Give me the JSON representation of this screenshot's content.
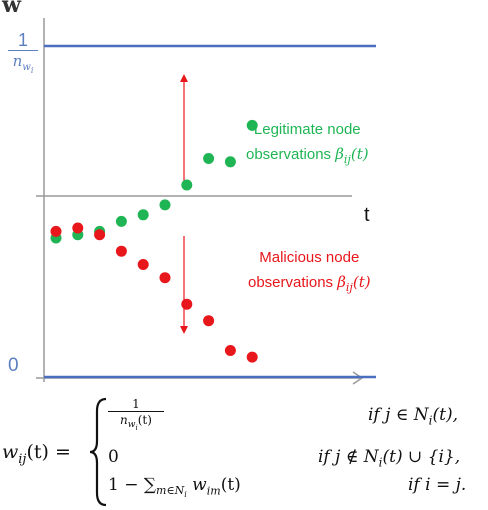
{
  "labels": {
    "w_axis": "w",
    "t_axis": "t",
    "one_over_n_num": "1",
    "one_over_n_den": "n",
    "one_over_n_sub": "w",
    "one_over_n_subsub": "i",
    "zero": "0",
    "legit_line1": "Legitimate node",
    "legit_line2": "observations",
    "legit_beta": "β",
    "legit_sub": "ij",
    "legit_t": "(t)",
    "mal_line1": "Malicious node",
    "mal_line2": "observations",
    "mal_beta": "β",
    "mal_sub": "ij",
    "mal_t": "(t)"
  },
  "colors": {
    "legit": "#1fb554",
    "malicious": "#e8171b",
    "bound_line": "#4a6fbf",
    "axis": "#9a9a9a",
    "arrow": "#e8171b"
  },
  "chart_data": {
    "type": "scatter",
    "ylim": [
      0,
      1
    ],
    "series": [
      {
        "name": "Legitimate node observations βij(t)",
        "x": [
          1,
          2,
          3,
          4,
          5,
          6,
          7,
          8,
          9,
          10
        ],
        "y": [
          0.42,
          0.43,
          0.44,
          0.47,
          0.49,
          0.52,
          0.58,
          0.66,
          0.65,
          0.76
        ]
      },
      {
        "name": "Malicious node observations βij(t)",
        "x": [
          1,
          2,
          3,
          4,
          5,
          6,
          7,
          8,
          9,
          10
        ],
        "y": [
          0.44,
          0.45,
          0.43,
          0.38,
          0.34,
          0.3,
          0.22,
          0.17,
          0.08,
          0.06
        ]
      }
    ]
  },
  "formula": {
    "lhs": "w",
    "lhs_sub": "ij",
    "lhs_arg": "(t) =",
    "case1_num": "1",
    "case1_den": "n",
    "case1_den_sub": "w",
    "case1_den_subsub": "i",
    "case1_den_arg": "(t)",
    "case1_cond": "if j ∈ N",
    "case1_cond_sub": "i",
    "case1_cond_end": "(t),",
    "case2_val": "0",
    "case2_cond": "if j ∉ N",
    "case2_cond_sub": "i",
    "case2_cond_end": "(t) ∪ {i},",
    "case3_val": "1 − ∑",
    "case3_sum_sub": "m∈N",
    "case3_sum_subsub": "i",
    "case3_w": " w",
    "case3_w_sub": "im",
    "case3_end": "(t)",
    "case3_cond": "if i = j."
  }
}
